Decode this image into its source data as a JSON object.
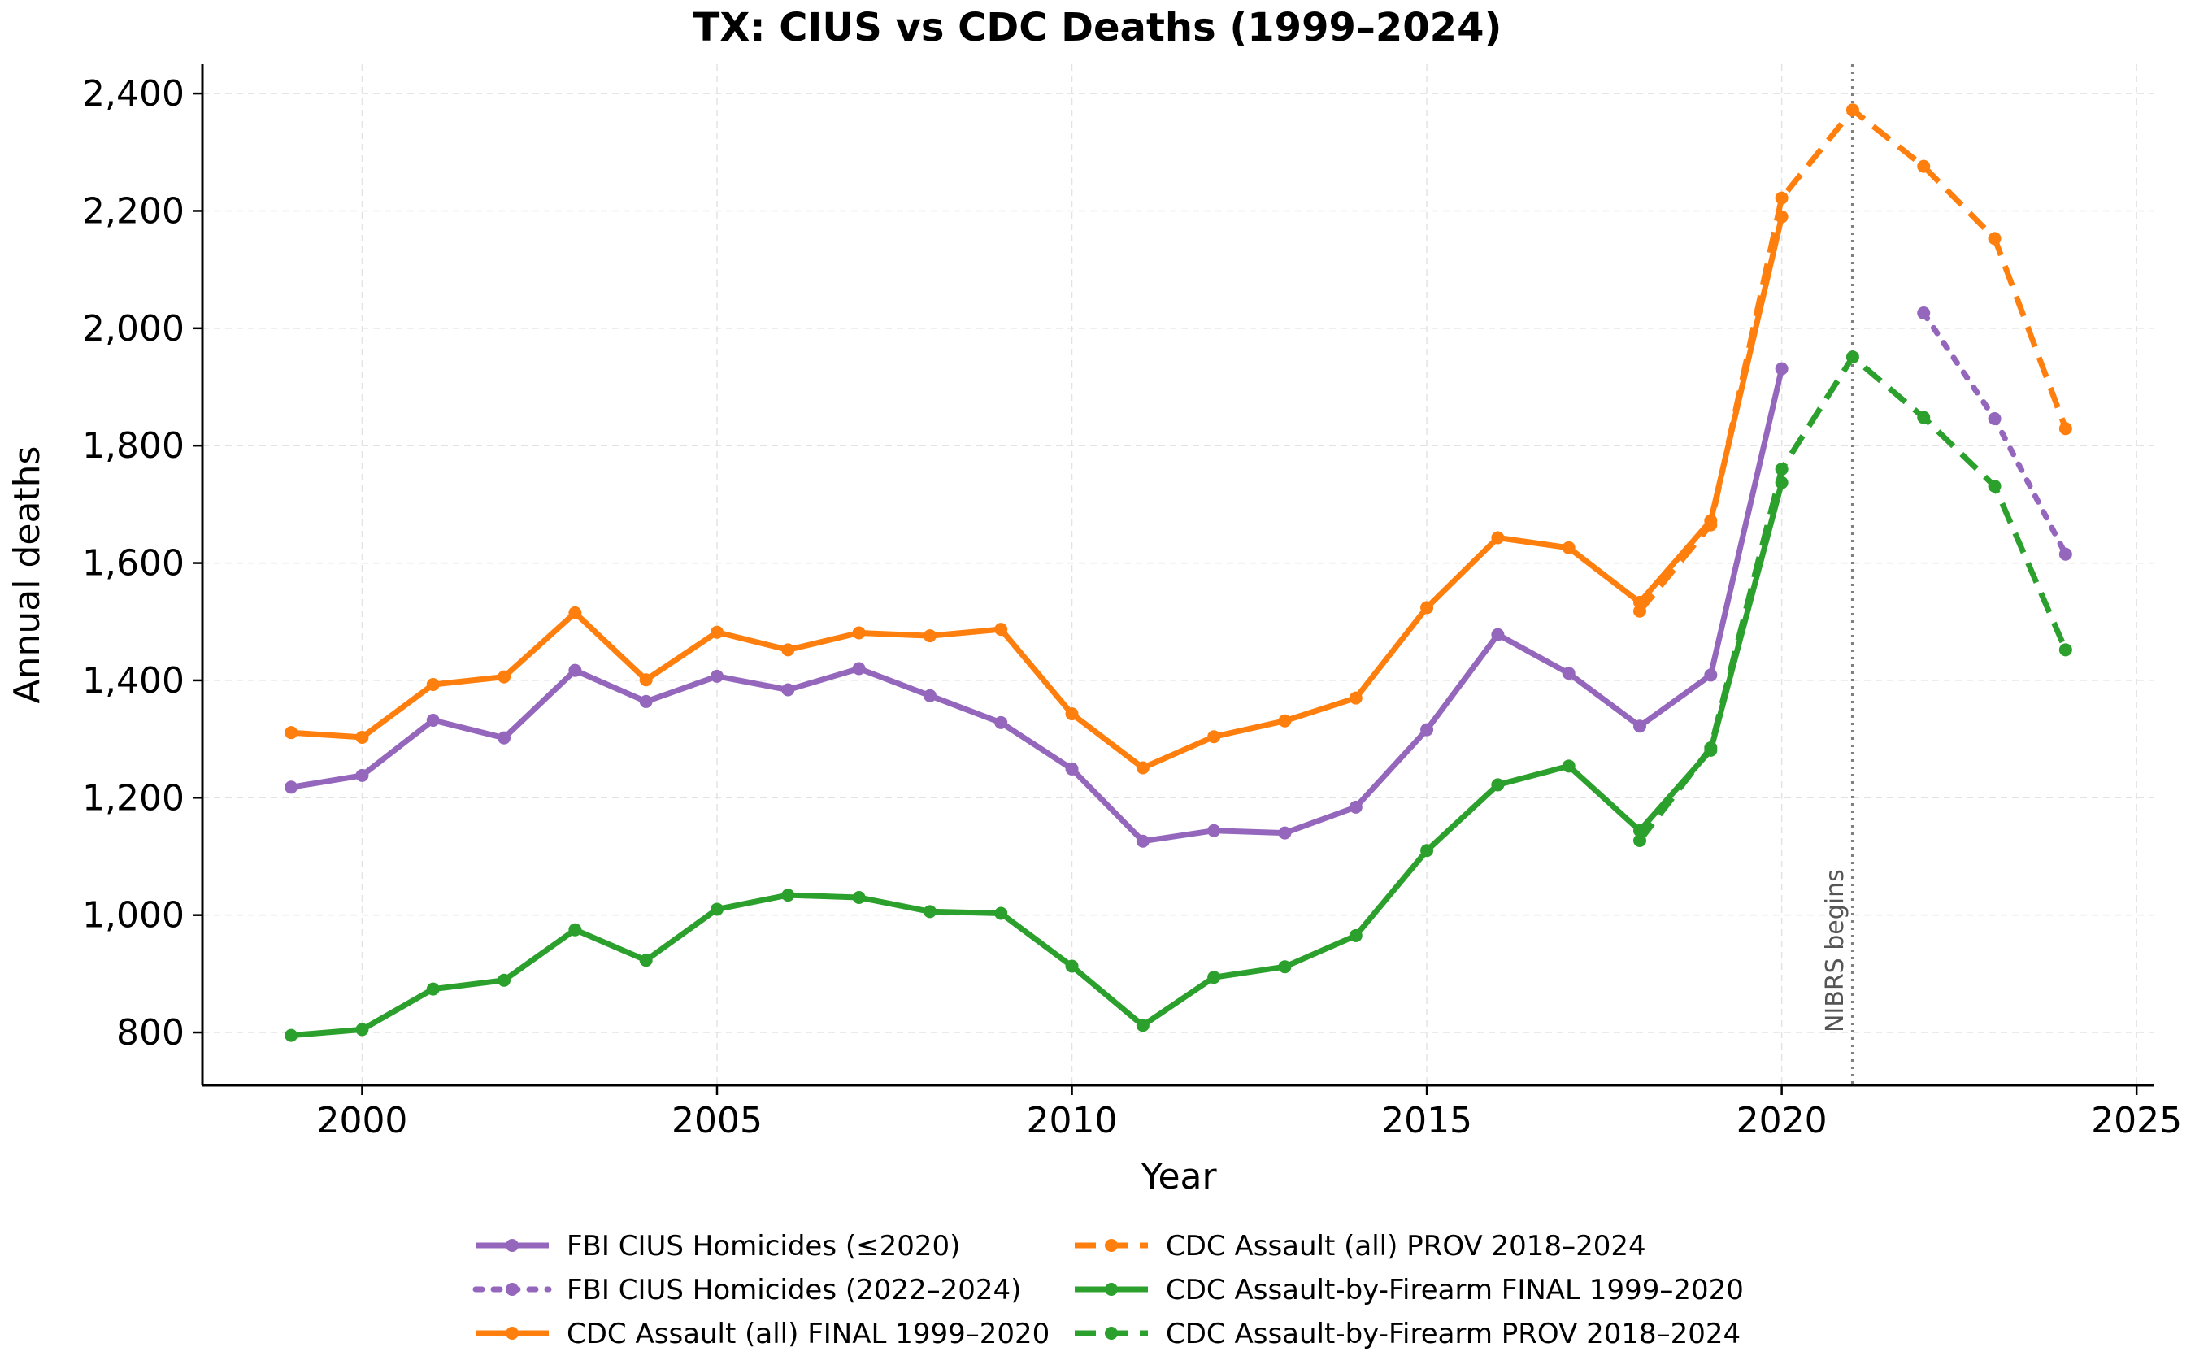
{
  "chart_data": {
    "type": "line",
    "title": "TX: CIUS vs CDC Deaths (1999–2024)",
    "xlabel": "Year",
    "ylabel": "Annual deaths",
    "xlim": [
      1997.75,
      2025.25
    ],
    "ylim": [
      710,
      2450
    ],
    "x_ticks": [
      2000,
      2005,
      2010,
      2015,
      2020,
      2025
    ],
    "x_tick_labels": [
      "2000",
      "2005",
      "2010",
      "2015",
      "2020",
      "2025"
    ],
    "y_ticks": [
      800,
      1000,
      1200,
      1400,
      1600,
      1800,
      2000,
      2200,
      2400
    ],
    "y_tick_labels": [
      "800",
      "1,000",
      "1,200",
      "1,400",
      "1,600",
      "1,800",
      "2,000",
      "2,200",
      "2,400"
    ],
    "grid": true,
    "legend_position": "bottom",
    "annotation": {
      "text": "NIBRS begins",
      "x": 2021
    },
    "series": [
      {
        "name": "FBI CIUS Homicides (≤2020)",
        "color": "#9467bd",
        "style": "solid",
        "x": [
          1999,
          2000,
          2001,
          2002,
          2003,
          2004,
          2005,
          2006,
          2007,
          2008,
          2009,
          2010,
          2011,
          2012,
          2013,
          2014,
          2015,
          2016,
          2017,
          2018,
          2019,
          2020
        ],
        "values": [
          1218,
          1238,
          1332,
          1302,
          1417,
          1364,
          1407,
          1384,
          1420,
          1374,
          1328,
          1249,
          1126,
          1144,
          1140,
          1184,
          1316,
          1478,
          1412,
          1322,
          1409,
          1931
        ]
      },
      {
        "name": "FBI CIUS Homicides (2022–2024)",
        "color": "#9467bd",
        "style": "dotted",
        "x": [
          2022,
          2023,
          2024
        ],
        "values": [
          2026,
          1846,
          1615
        ]
      },
      {
        "name": "CDC Assault (all) FINAL 1999–2020",
        "color": "#ff7f0e",
        "style": "solid",
        "x": [
          1999,
          2000,
          2001,
          2002,
          2003,
          2004,
          2005,
          2006,
          2007,
          2008,
          2009,
          2010,
          2011,
          2012,
          2013,
          2014,
          2015,
          2016,
          2017,
          2018,
          2019,
          2020
        ],
        "values": [
          1311,
          1303,
          1393,
          1406,
          1515,
          1401,
          1482,
          1452,
          1481,
          1476,
          1487,
          1343,
          1251,
          1304,
          1331,
          1370,
          1524,
          1643,
          1626,
          1533,
          1672,
          2190
        ]
      },
      {
        "name": "CDC Assault (all) PROV 2018–2024",
        "color": "#ff7f0e",
        "style": "dashed",
        "x": [
          2018,
          2019,
          2020,
          2021,
          2022,
          2023,
          2024
        ],
        "values": [
          1518,
          1665,
          2222,
          2372,
          2276,
          2153,
          1829
        ]
      },
      {
        "name": "CDC Assault-by-Firearm FINAL 1999–2020",
        "color": "#2ca02c",
        "style": "solid",
        "x": [
          1999,
          2000,
          2001,
          2002,
          2003,
          2004,
          2005,
          2006,
          2007,
          2008,
          2009,
          2010,
          2011,
          2012,
          2013,
          2014,
          2015,
          2016,
          2017,
          2018,
          2019,
          2020
        ],
        "values": [
          795,
          805,
          874,
          889,
          975,
          923,
          1010,
          1034,
          1030,
          1006,
          1003,
          913,
          812,
          894,
          912,
          965,
          1110,
          1222,
          1254,
          1144,
          1281,
          1737
        ]
      },
      {
        "name": "CDC Assault-by-Firearm PROV 2018–2024",
        "color": "#2ca02c",
        "style": "dashed",
        "x": [
          2018,
          2019,
          2020,
          2021,
          2022,
          2023,
          2024
        ],
        "values": [
          1127,
          1285,
          1760,
          1951,
          1848,
          1731,
          1452
        ]
      }
    ]
  }
}
